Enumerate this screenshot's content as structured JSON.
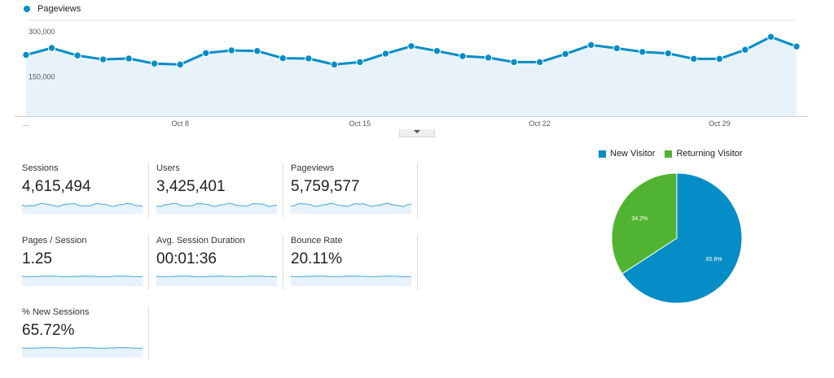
{
  "header": {
    "series_label": "Pageviews"
  },
  "chart_data": [
    {
      "type": "area",
      "title": "",
      "series": [
        {
          "name": "Pageviews",
          "values": [
            204000,
            227000,
            202000,
            189000,
            192000,
            175000,
            172000,
            210000,
            219000,
            217000,
            193000,
            192000,
            172000,
            180000,
            208000,
            233000,
            217000,
            200000,
            195000,
            180000,
            180000,
            207000,
            237000,
            226000,
            214000,
            209000,
            191000,
            191000,
            221000,
            264000,
            232000
          ]
        }
      ],
      "x_ticks": [
        "Oct 8",
        "Oct 15",
        "Oct 22",
        "Oct 29"
      ],
      "x_start_marker": "...",
      "y_ticks": [
        "300,000",
        "150,000"
      ],
      "ylim": [
        0,
        300000
      ],
      "grid": true
    },
    {
      "type": "pie",
      "labels": [
        "New Visitor",
        "Returning Visitor"
      ],
      "values": [
        65.8,
        34.2
      ],
      "value_labels": [
        "65.8%",
        "34.2%"
      ],
      "colors": [
        "#058dc7",
        "#50b432"
      ],
      "legend": "top"
    }
  ],
  "metrics": [
    {
      "label": "Sessions",
      "value": "4,615,494"
    },
    {
      "label": "Users",
      "value": "3,425,401"
    },
    {
      "label": "Pageviews",
      "value": "5,759,577"
    },
    {
      "label": "Pages / Session",
      "value": "1.25"
    },
    {
      "label": "Avg. Session Duration",
      "value": "00:01:36"
    },
    {
      "label": "Bounce Rate",
      "value": "20.11%"
    },
    {
      "label": "% New Sessions",
      "value": "65.72%"
    }
  ],
  "colors": {
    "accent": "#058dc7",
    "area_fill": "#e7f2fb",
    "returning": "#50b432",
    "sparkline": "#5bb3e0"
  },
  "expand_icon": "chevron-down-icon"
}
